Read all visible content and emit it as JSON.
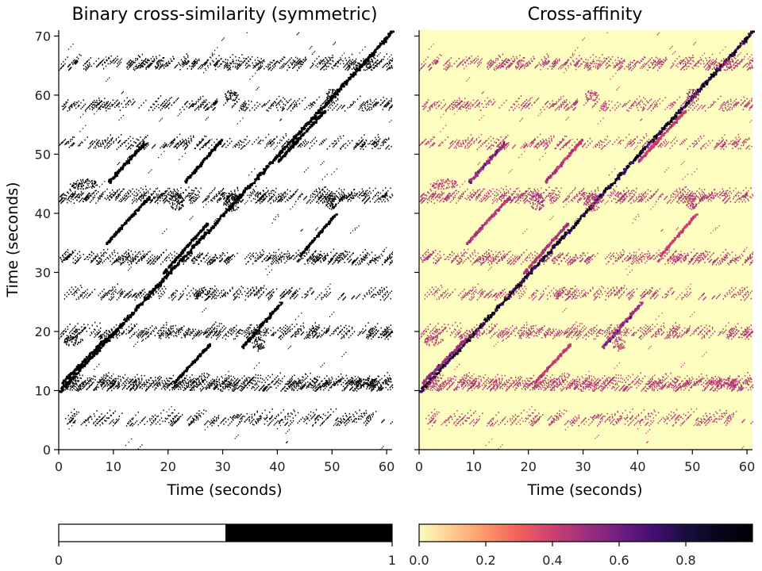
{
  "chart_data": [
    {
      "type": "heatmap",
      "title": "Binary cross-similarity (symmetric)",
      "xlabel": "Time (seconds)",
      "ylabel": "Time (seconds)",
      "xlim": [
        0,
        61
      ],
      "ylim": [
        0,
        71
      ],
      "xticks": [
        0,
        10,
        20,
        30,
        40,
        50,
        60
      ],
      "yticks": [
        0,
        10,
        20,
        30,
        40,
        50,
        60,
        70
      ],
      "colormap": "binary",
      "colors": {
        "low": "#ffffff",
        "high": "#000000"
      },
      "colorbar": {
        "min": 0,
        "max": 1,
        "ticks": [
          "0",
          "1"
        ]
      },
      "segments": [
        {
          "x0": 0.0,
          "y0": 10.0,
          "x1": 61.0,
          "y1": 71.0,
          "w": 0.9,
          "strength": 1.0
        },
        {
          "x0": 0.5,
          "y0": 11.5,
          "x1": 8.5,
          "y1": 19.0,
          "w": 0.7,
          "strength": 0.7
        },
        {
          "x0": 8.5,
          "y0": 35.0,
          "x1": 16.5,
          "y1": 43.0,
          "w": 0.6,
          "strength": 0.6
        },
        {
          "x0": 9.0,
          "y0": 45.5,
          "x1": 15.5,
          "y1": 52.0,
          "w": 0.7,
          "strength": 0.7
        },
        {
          "x0": 23.0,
          "y0": 45.5,
          "x1": 29.5,
          "y1": 52.5,
          "w": 0.6,
          "strength": 0.6
        },
        {
          "x0": 33.5,
          "y0": 17.5,
          "x1": 40.5,
          "y1": 25.0,
          "w": 0.7,
          "strength": 0.7
        },
        {
          "x0": 19.0,
          "y0": 30.0,
          "x1": 27.0,
          "y1": 38.5,
          "w": 0.5,
          "strength": 0.6
        },
        {
          "x0": 44.0,
          "y0": 33.0,
          "x1": 50.5,
          "y1": 40.0,
          "w": 0.5,
          "strength": 0.55
        },
        {
          "x0": 40.0,
          "y0": 49.0,
          "x1": 48.5,
          "y1": 57.5,
          "w": 0.5,
          "strength": 0.55
        },
        {
          "x0": 21.0,
          "y0": 11.5,
          "x1": 27.5,
          "y1": 18.0,
          "w": 0.5,
          "strength": 0.55
        }
      ],
      "blobs": [
        {
          "x": 21.5,
          "y": 42.0,
          "rx": 1.4,
          "ry": 1.4,
          "strength": 0.7
        },
        {
          "x": 50.0,
          "y": 60.0,
          "rx": 1.2,
          "ry": 1.2,
          "strength": 0.7
        },
        {
          "x": 31.5,
          "y": 60.0,
          "rx": 1.2,
          "ry": 1.0,
          "strength": 0.6
        },
        {
          "x": 31.5,
          "y": 42.0,
          "rx": 1.6,
          "ry": 1.6,
          "strength": 0.6
        },
        {
          "x": 49.5,
          "y": 42.0,
          "rx": 1.3,
          "ry": 1.3,
          "strength": 0.6
        },
        {
          "x": 56.0,
          "y": 11.5,
          "rx": 2.5,
          "ry": 0.8,
          "strength": 0.6
        },
        {
          "x": 4.5,
          "y": 45.0,
          "rx": 2.5,
          "ry": 0.9,
          "strength": 0.6
        },
        {
          "x": 2.5,
          "y": 18.5,
          "rx": 1.8,
          "ry": 0.9,
          "strength": 0.6
        },
        {
          "x": 36.5,
          "y": 18.0,
          "rx": 1.2,
          "ry": 1.2,
          "strength": 0.6
        }
      ],
      "bands": [
        {
          "y": 10.8,
          "x0": 0,
          "x1": 61,
          "h": 0.8,
          "density": 0.1
        },
        {
          "y": 19.5,
          "x0": 0,
          "x1": 61,
          "h": 0.7,
          "density": 0.06
        },
        {
          "y": 32.0,
          "x0": 0,
          "x1": 61,
          "h": 0.6,
          "density": 0.06
        },
        {
          "y": 42.5,
          "x0": 0,
          "x1": 61,
          "h": 0.7,
          "density": 0.07
        },
        {
          "y": 65.0,
          "x0": 0,
          "x1": 61,
          "h": 0.7,
          "density": 0.06
        },
        {
          "y": 4.8,
          "x0": 0,
          "x1": 61,
          "h": 0.7,
          "density": 0.04
        },
        {
          "y": 26.0,
          "x0": 0,
          "x1": 61,
          "h": 0.6,
          "density": 0.04
        },
        {
          "y": 58.0,
          "x0": 0,
          "x1": 61,
          "h": 0.6,
          "density": 0.04
        },
        {
          "y": 51.5,
          "x0": 0,
          "x1": 61,
          "h": 0.6,
          "density": 0.04
        }
      ],
      "noise_density": 0.025
    },
    {
      "type": "heatmap",
      "title": "Cross-affinity",
      "xlabel": "Time (seconds)",
      "xlim": [
        0,
        61
      ],
      "ylim": [
        0,
        71
      ],
      "xticks": [
        0,
        10,
        20,
        30,
        40,
        50,
        60
      ],
      "yticks": [
        0,
        10,
        20,
        30,
        40,
        50,
        60,
        70
      ],
      "colormap": "magma_r",
      "colors": {
        "background": "#fcfdbf",
        "mid": "#de4968",
        "high": "#3b0f70",
        "max": "#000004"
      },
      "colorbar": {
        "min": 0,
        "max": 1,
        "ticks": [
          "0.0",
          "0.2",
          "0.4",
          "0.6",
          "0.8"
        ]
      },
      "same_pattern_as": 0
    }
  ]
}
